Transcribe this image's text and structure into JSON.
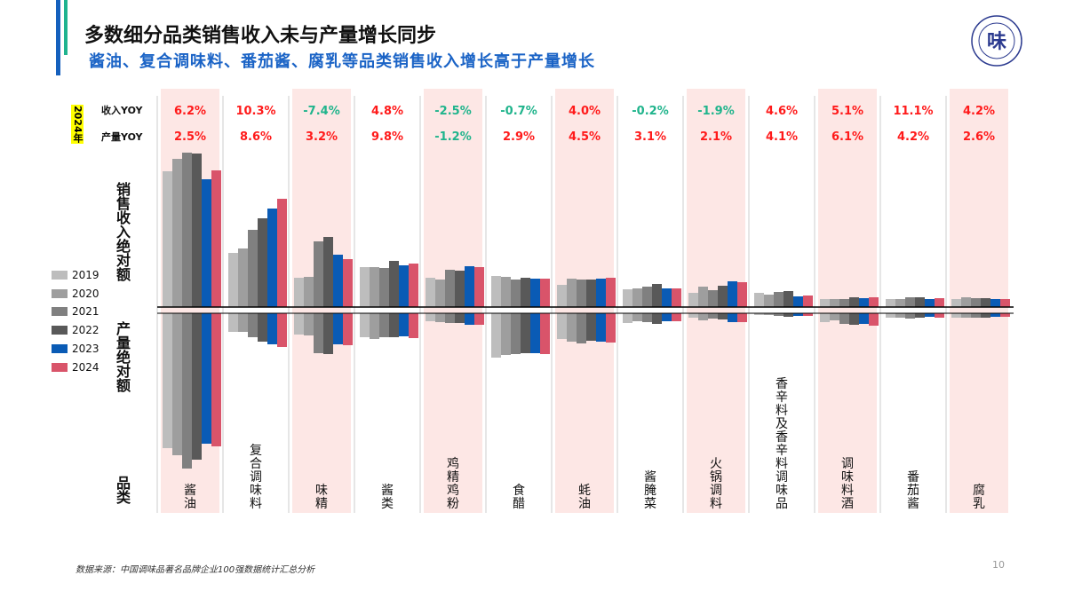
{
  "header": {
    "title": "多数细分品类销售收入未与产量增长同步",
    "subtitle": "酱油、复合调味料、番茄酱、腐乳等品类销售收入增长高于产量增长"
  },
  "logo": {
    "text": "味"
  },
  "table": {
    "year_tag": "2024年",
    "revenue_yoy_label": "收入YOY",
    "output_yoy_label": "产量YOY"
  },
  "axis_labels": {
    "revenue": "销售收入绝对额",
    "output": "产量绝对额",
    "category": "品类"
  },
  "footer": {
    "source": "数据来源：中国调味品著名品牌企业100强数据统计汇总分析",
    "page": "10"
  },
  "colors": {
    "2019": "#bdbdbd",
    "2020": "#9e9e9e",
    "2021": "#808080",
    "2022": "#595959",
    "2023": "#0a5bb5",
    "2024": "#d9546a",
    "highlight": "#fde7e5",
    "positive": "#ff1a1a",
    "negative": "#20b48c"
  },
  "chart_data": {
    "type": "bar",
    "title": "",
    "series_names": [
      "2019",
      "2020",
      "2021",
      "2022",
      "2023",
      "2024"
    ],
    "categories": [
      "酱油",
      "复合调味料",
      "味精",
      "酱类",
      "鸡精鸡粉",
      "食醋",
      "蚝油",
      "酱腌菜",
      "火锅调料",
      "香辛料及香辛料调味品",
      "调味料酒",
      "番茄酱",
      "腐乳"
    ],
    "highlighted": [
      true,
      false,
      true,
      false,
      true,
      false,
      true,
      false,
      true,
      false,
      true,
      false,
      true
    ],
    "revenue_yoy_2024": [
      "6.2%",
      "10.3%",
      "-7.4%",
      "4.8%",
      "-2.5%",
      "-0.7%",
      "4.0%",
      "-0.2%",
      "-1.9%",
      "4.6%",
      "5.1%",
      "11.1%",
      "4.2%"
    ],
    "output_yoy_2024": [
      "2.5%",
      "8.6%",
      "3.2%",
      "9.8%",
      "-1.2%",
      "2.9%",
      "4.5%",
      "3.1%",
      "2.1%",
      "4.1%",
      "6.1%",
      "4.2%",
      "2.6%"
    ],
    "revenue_relative": [
      [
        153,
        167,
        174,
        173,
        144,
        154
      ],
      [
        61,
        66,
        87,
        100,
        111,
        122
      ],
      [
        33,
        34,
        74,
        79,
        59,
        54
      ],
      [
        45,
        45,
        44,
        52,
        47,
        49
      ],
      [
        33,
        31,
        42,
        41,
        46,
        45
      ],
      [
        35,
        34,
        31,
        33,
        32,
        32
      ],
      [
        25,
        32,
        31,
        31,
        32,
        33
      ],
      [
        20,
        21,
        23,
        26,
        21,
        21
      ],
      [
        16,
        23,
        19,
        24,
        29,
        28
      ],
      [
        16,
        14,
        17,
        18,
        12,
        13
      ],
      [
        9,
        9,
        9,
        11,
        10,
        11
      ],
      [
        9,
        9,
        11,
        11,
        9,
        10
      ],
      [
        9,
        11,
        10,
        10,
        9,
        9
      ]
    ],
    "output_relative": [
      [
        152,
        160,
        175,
        165,
        147,
        150
      ],
      [
        21,
        21,
        27,
        32,
        35,
        38
      ],
      [
        24,
        25,
        45,
        46,
        35,
        36
      ],
      [
        27,
        29,
        27,
        27,
        26,
        28
      ],
      [
        9,
        10,
        11,
        11,
        13,
        13
      ],
      [
        50,
        47,
        46,
        45,
        45,
        46
      ],
      [
        29,
        32,
        34,
        31,
        32,
        33
      ],
      [
        11,
        9,
        10,
        12,
        9,
        9
      ],
      [
        5,
        8,
        6,
        7,
        10,
        10
      ],
      [
        2,
        2,
        3,
        4,
        3,
        3
      ],
      [
        10,
        8,
        12,
        13,
        12,
        14
      ],
      [
        5,
        5,
        6,
        5,
        4,
        5
      ],
      [
        5,
        5,
        5,
        5,
        4,
        4
      ]
    ],
    "legend_position": "left",
    "grid": false
  }
}
